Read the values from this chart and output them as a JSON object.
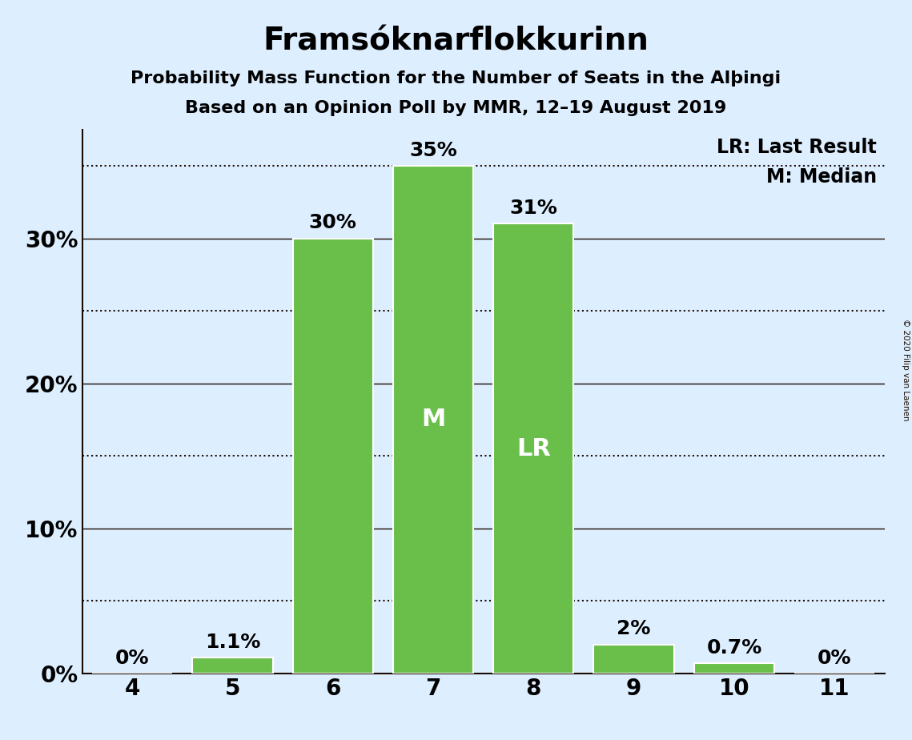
{
  "title": "Framsóknarflokkurinn",
  "subtitle1": "Probability Mass Function for the Number of Seats in the Alþingi",
  "subtitle2": "Based on an Opinion Poll by MMR, 12–19 August 2019",
  "categories": [
    4,
    5,
    6,
    7,
    8,
    9,
    10,
    11
  ],
  "values": [
    0.0,
    1.1,
    30.0,
    35.0,
    31.0,
    2.0,
    0.7,
    0.0
  ],
  "bar_color": "#6abf4b",
  "background_color": "#ddeeff",
  "median_seat": 7,
  "last_result_seat": 8,
  "median_label": "M",
  "lr_label": "LR",
  "legend_lr": "LR: Last Result",
  "legend_m": "M: Median",
  "ylim": [
    0,
    37.5
  ],
  "yticks_labeled": [
    0,
    10,
    20,
    30
  ],
  "ytick_labels": [
    "0%",
    "10%",
    "20%",
    "30%"
  ],
  "hlines_solid": [
    10,
    20,
    30
  ],
  "hlines_dotted": [
    5,
    15,
    25,
    35
  ],
  "copyright": "© 2020 Filip van Laenen",
  "bar_edge_color": "white",
  "bar_linewidth": 1.5,
  "title_fontsize": 28,
  "subtitle_fontsize": 16,
  "axis_label_fontsize": 20,
  "bar_label_fontsize": 18,
  "inner_label_fontsize": 22,
  "legend_fontsize": 17,
  "yaxis_label_fontsize": 20
}
